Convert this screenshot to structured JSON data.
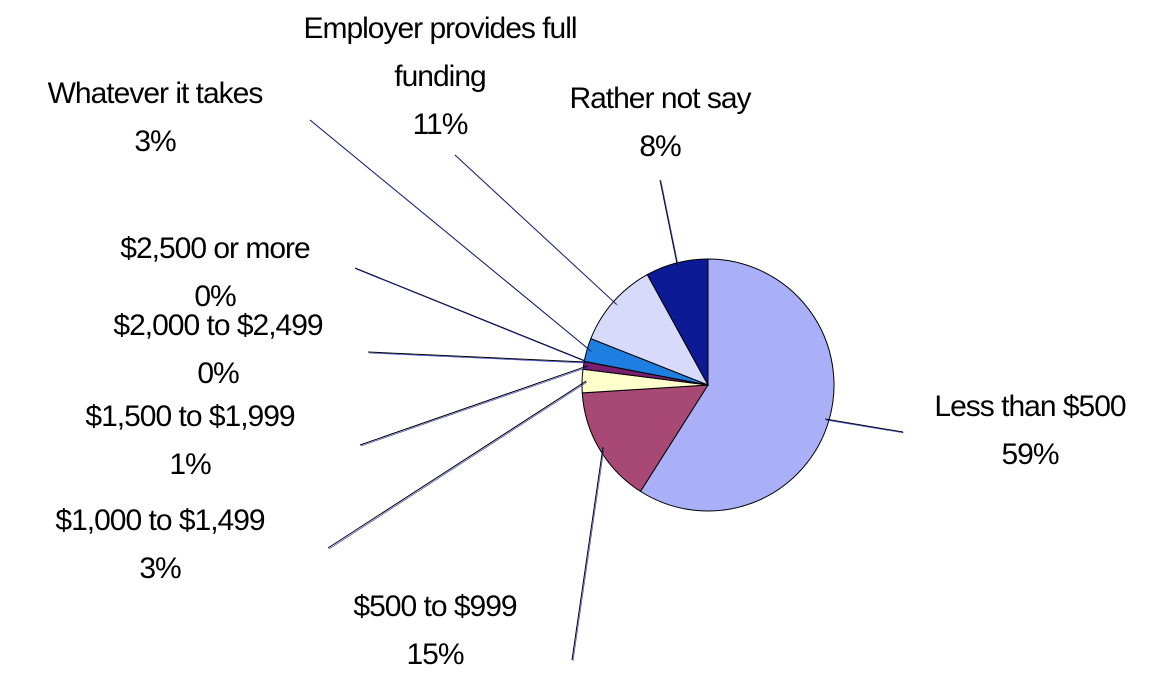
{
  "chart_data": {
    "type": "pie",
    "categories": [
      "Less than $500",
      "$500 to $999",
      "$1,000 to $1,499",
      "$1,500 to $1,999",
      "$2,000 to $2,499",
      "$2,500 or more",
      "Whatever it takes",
      "Employer provides full funding",
      "Rather not say"
    ],
    "values": [
      59,
      15,
      3,
      1,
      0,
      0,
      3,
      11,
      8
    ],
    "value_labels": [
      "59%",
      "15%",
      "3%",
      "1%",
      "0%",
      "0%",
      "3%",
      "11%",
      "8%"
    ],
    "colors": [
      "#a9b0f8",
      "#a84874",
      "#ffffcc",
      "#7a1e6e",
      "#3a3aa0",
      "#9ad0f0",
      "#1f7fe0",
      "#d8dafc",
      "#0c1a96"
    ]
  }
}
